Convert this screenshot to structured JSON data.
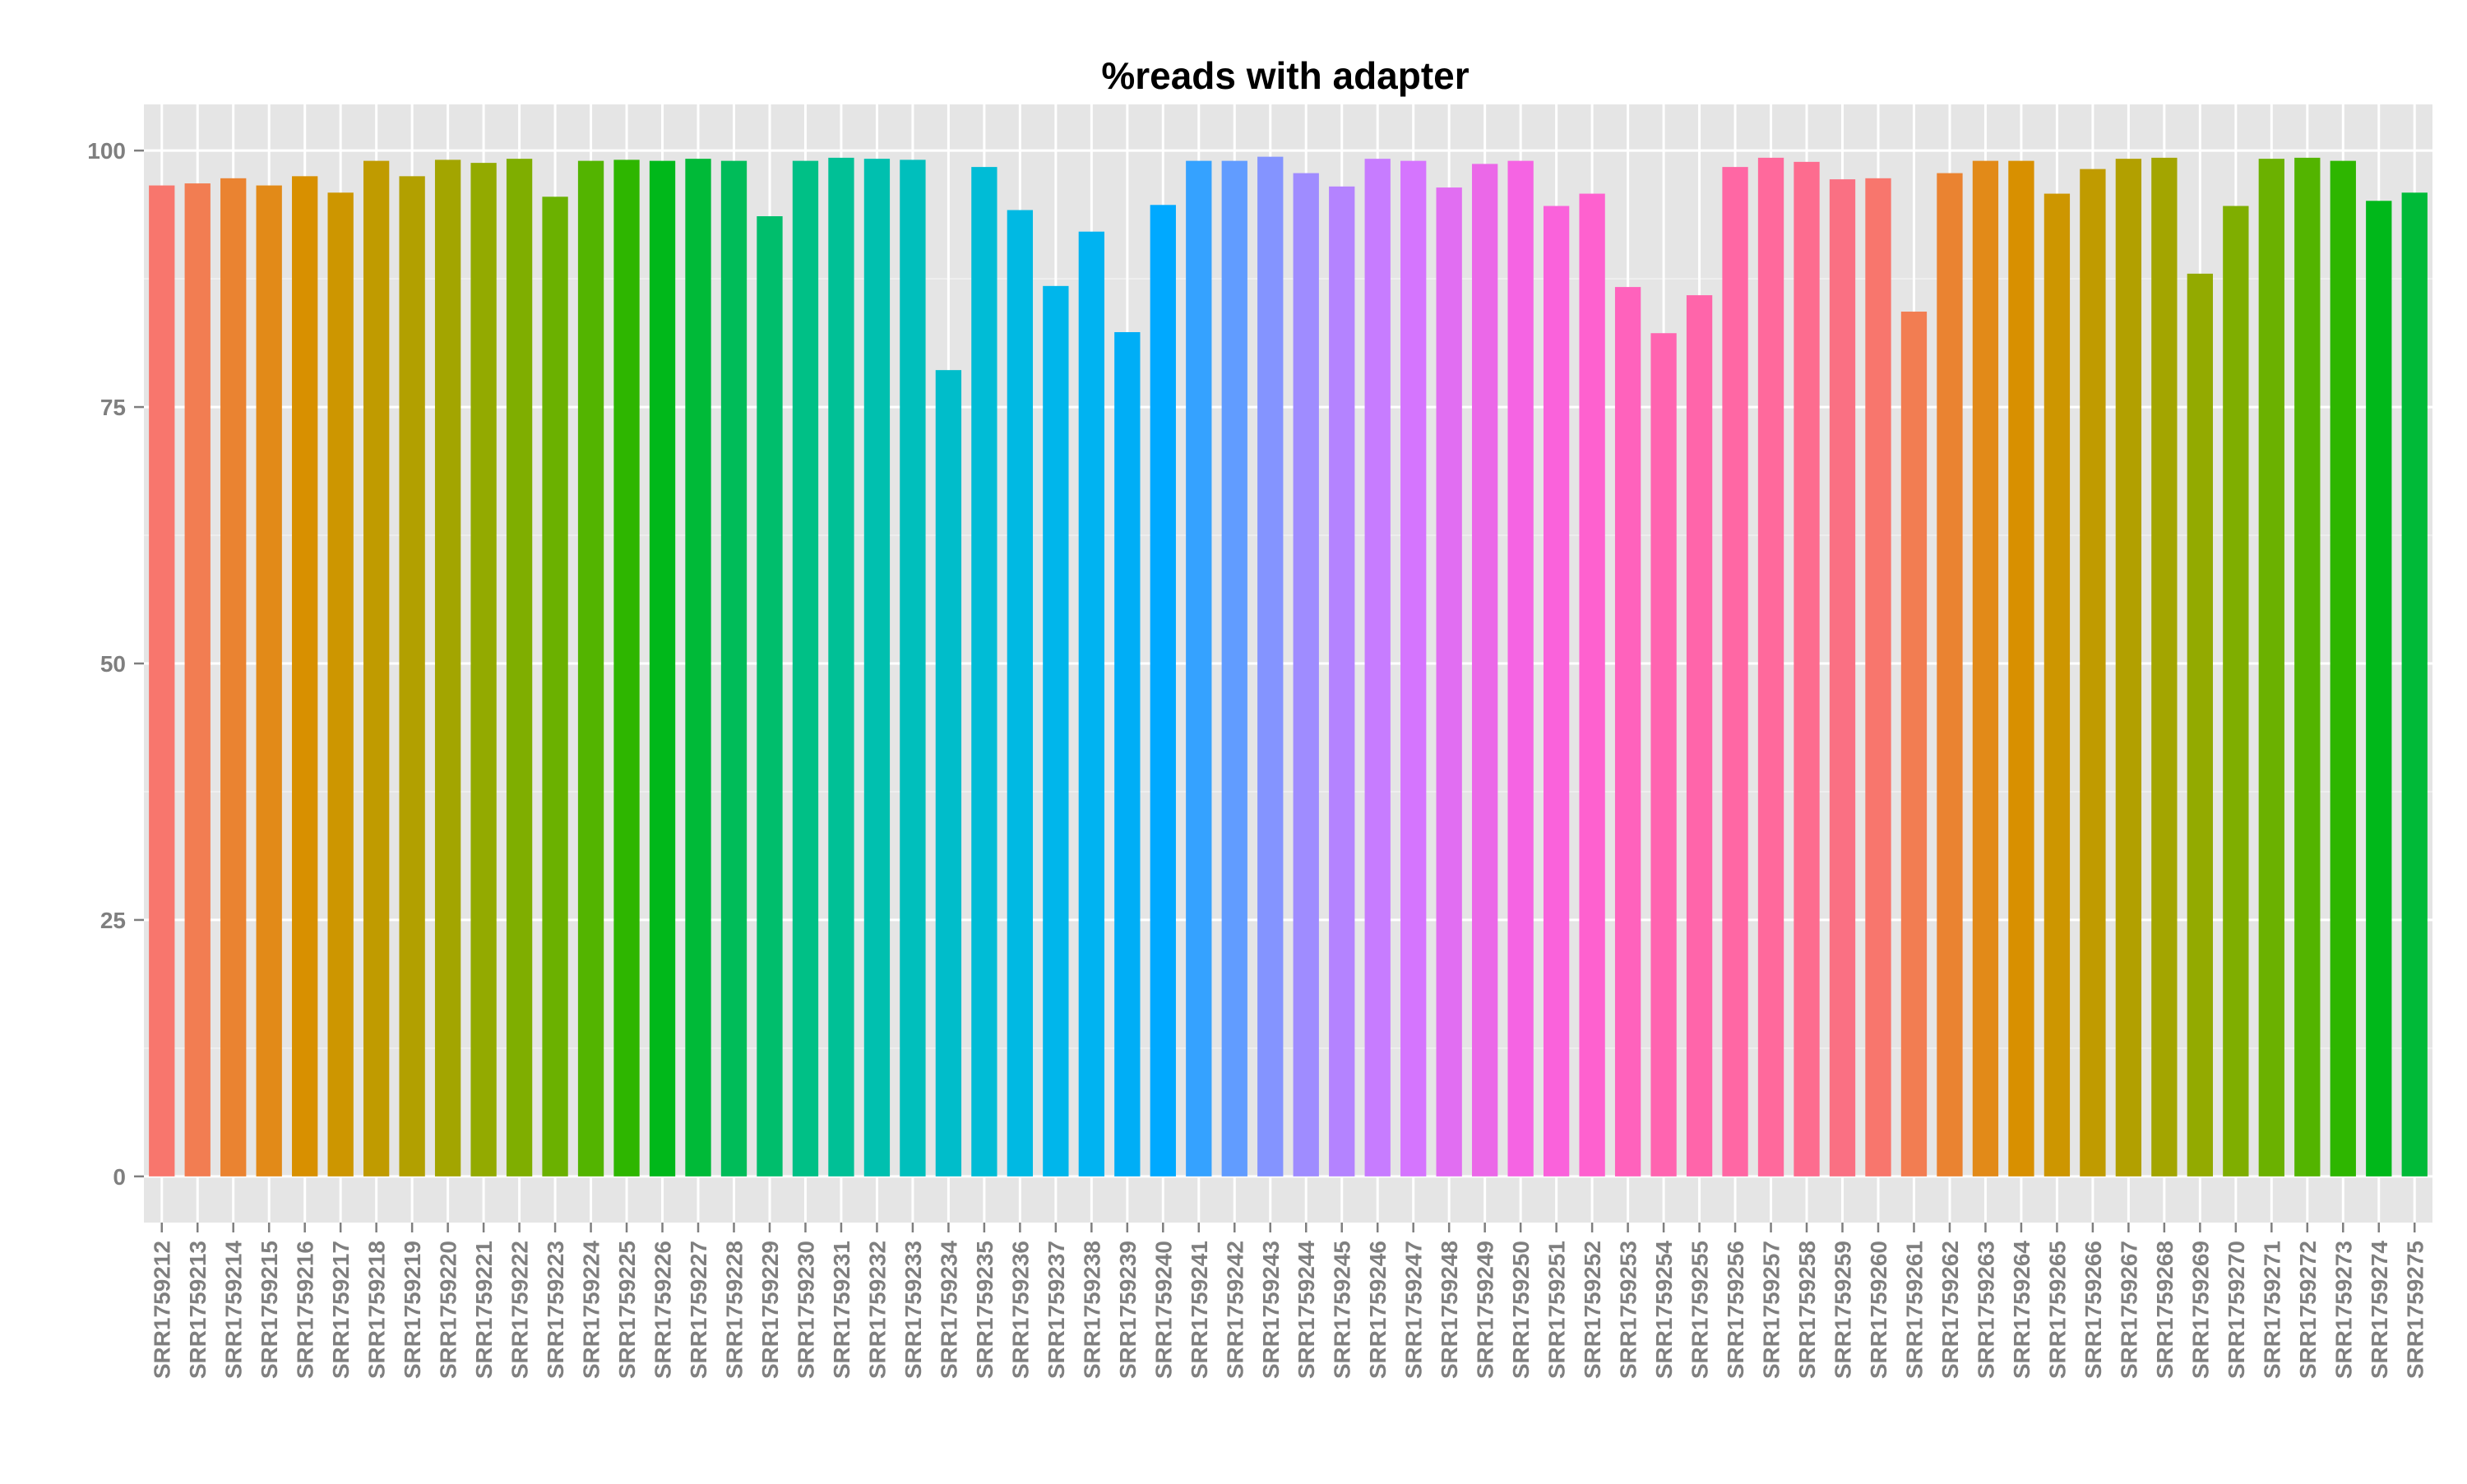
{
  "chart_data": {
    "type": "bar",
    "title": "%reads with adapter",
    "xlabel": "",
    "ylabel": "",
    "ylim": [
      -4.5,
      104.5
    ],
    "yticks": [
      0,
      25,
      50,
      75,
      100
    ],
    "grid": true,
    "legend": "none",
    "colors": {
      "panel_background": "#e5e5e5",
      "grid_major": "#ffffff",
      "grid_minor": "#f2f2f2",
      "tick_label": "#7f7f7f",
      "title": "#000000"
    },
    "categories": [
      "SRR1759212",
      "SRR1759213",
      "SRR1759214",
      "SRR1759215",
      "SRR1759216",
      "SRR1759217",
      "SRR1759218",
      "SRR1759219",
      "SRR1759220",
      "SRR1759221",
      "SRR1759222",
      "SRR1759223",
      "SRR1759224",
      "SRR1759225",
      "SRR1759226",
      "SRR1759227",
      "SRR1759228",
      "SRR1759229",
      "SRR1759230",
      "SRR1759231",
      "SRR1759232",
      "SRR1759233",
      "SRR1759234",
      "SRR1759235",
      "SRR1759236",
      "SRR1759237",
      "SRR1759238",
      "SRR1759239",
      "SRR1759240",
      "SRR1759241",
      "SRR1759242",
      "SRR1759243",
      "SRR1759244",
      "SRR1759245",
      "SRR1759246",
      "SRR1759247",
      "SRR1759248",
      "SRR1759249",
      "SRR1759250",
      "SRR1759251",
      "SRR1759252",
      "SRR1759253",
      "SRR1759254",
      "SRR1759255",
      "SRR1759256",
      "SRR1759257",
      "SRR1759258",
      "SRR1759259",
      "SRR1759260",
      "SRR1759261",
      "SRR1759262",
      "SRR1759263",
      "SRR1759264",
      "SRR1759265",
      "SRR1759266",
      "SRR1759267",
      "SRR1759268",
      "SRR1759269",
      "SRR1759270",
      "SRR1759271",
      "SRR1759272",
      "SRR1759273",
      "SRR1759274",
      "SRR1759275"
    ],
    "values": [
      96.6,
      96.8,
      97.3,
      96.6,
      97.5,
      95.9,
      99.0,
      97.5,
      99.1,
      98.8,
      99.2,
      95.5,
      99.0,
      99.1,
      99.0,
      99.2,
      99.0,
      93.6,
      99.0,
      99.3,
      99.2,
      99.1,
      78.6,
      98.4,
      94.2,
      86.8,
      92.1,
      82.3,
      94.7,
      99.0,
      99.0,
      99.4,
      97.8,
      96.5,
      99.2,
      99.0,
      96.4,
      98.7,
      99.0,
      94.6,
      95.8,
      86.7,
      82.2,
      85.9,
      98.4,
      99.3,
      98.9,
      97.2,
      97.3,
      84.3,
      97.8,
      99.0,
      99.0,
      95.8,
      98.2,
      99.2,
      99.3,
      88.0,
      94.6,
      99.2,
      99.3,
      99.0,
      95.1,
      95.9
    ],
    "bar_colors": [
      "#F8766D",
      "#F27D52",
      "#EA8331",
      "#E28A18",
      "#D89000",
      "#CD9600",
      "#C09B00",
      "#B2A000",
      "#A3A500",
      "#93AA00",
      "#7FAE00",
      "#6BB100",
      "#53B400",
      "#2EB600",
      "#00B81A",
      "#00BA38",
      "#00BC59",
      "#00BE6C",
      "#00C086",
      "#00C096",
      "#00C0AF",
      "#00BFBC",
      "#00BDCA",
      "#00BCD6",
      "#00B9E3",
      "#00B6EB",
      "#00B3F1",
      "#00AEF6",
      "#00A9FF",
      "#35A2FF",
      "#619CFF",
      "#8494FF",
      "#9F8CFF",
      "#B483FF",
      "#C77CFF",
      "#D575FE",
      "#E16EF2",
      "#EB68E8",
      "#F564E3",
      "#FA62DB",
      "#FE61CF",
      "#FF62BC",
      "#FF64B0",
      "#FF65AA",
      "#FF67A4",
      "#FF699C",
      "#FD6C8F",
      "#FA7083",
      "#F8766D",
      "#F27D52",
      "#EA8331",
      "#E28A18",
      "#D89000",
      "#CD9600",
      "#C09B00",
      "#B2A000",
      "#A3A500",
      "#93AA00",
      "#7FAE00",
      "#6BB100",
      "#53B400",
      "#2EB600",
      "#00B81A",
      "#00BA38"
    ]
  }
}
